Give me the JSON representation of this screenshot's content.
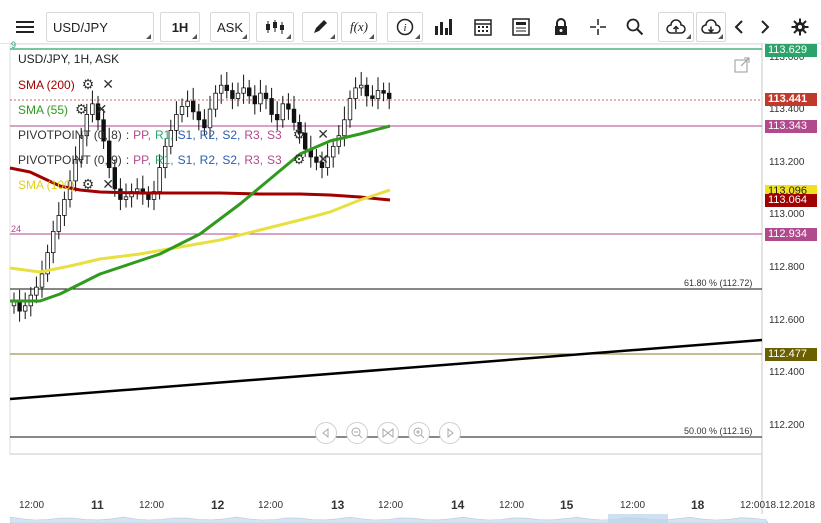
{
  "toolbar": {
    "menu_icon": "hamburger-menu-icon",
    "symbol": "USD/JPY",
    "timeframe": "1H",
    "price_type": "ASK",
    "function_label": "f(x)"
  },
  "legend": {
    "title": "USD/JPY, 1H, ASK",
    "sma200": "SMA (200)",
    "sma55": "SMA (55)",
    "sma100": "SMA (100)",
    "pivot1_name": "PIVOTPOINT (0, 8)",
    "pivot2_name": "PIVOTPOINT (0, 9)",
    "pivot_colon": ":",
    "pivot_levels": [
      "PP,",
      "R1,",
      "S1,",
      "R2,",
      "S2,",
      "R3,",
      "S3"
    ]
  },
  "price_tags": {
    "top": "113.629",
    "current": "113.441",
    "pivot_high": "113.343",
    "sma100": "113.096",
    "sma200": "113.064",
    "pivot_low": "112.934",
    "trend": "112.477"
  },
  "price_axis": [
    "113.600",
    "113.400",
    "113.200",
    "113.000",
    "112.800",
    "112.600",
    "112.400",
    "112.200"
  ],
  "time_axis": {
    "ticks": [
      "12:00",
      "11",
      "12:00",
      "12",
      "12:00",
      "13",
      "12:00",
      "14",
      "12:00",
      "15",
      "12:00",
      "18",
      "12:00",
      "18.12.2018"
    ]
  },
  "left_edge_labels": [
    "9",
    "24"
  ],
  "fibonacci": {
    "level_618": "61.80 % (112.72)",
    "level_50": "50.00 % (112.16)"
  },
  "colors": {
    "sma200": "#a00000",
    "sma55": "#2f9a1d",
    "sma100": "#e8e040",
    "pivot_line": "#b04a8c",
    "current_price": "#c0392b",
    "top_line": "#2ca36b",
    "trend_tag": "#6b6000",
    "candle": "#111111"
  },
  "chart_data": {
    "type": "candlestick",
    "series_name": "USD/JPY, 1H, ASK",
    "close_hourly_approx": [
      112.68,
      112.64,
      112.66,
      112.7,
      112.73,
      112.78,
      112.86,
      112.94,
      113.0,
      113.06,
      113.13,
      113.21,
      113.3,
      113.38,
      113.42,
      113.36,
      113.28,
      113.18,
      113.1,
      113.06,
      113.07,
      113.09,
      113.1,
      113.08,
      113.06,
      113.09,
      113.18,
      113.26,
      113.32,
      113.38,
      113.41,
      113.43,
      113.39,
      113.36,
      113.33,
      113.4,
      113.46,
      113.49,
      113.47,
      113.44,
      113.46,
      113.48,
      113.45,
      113.42,
      113.46,
      113.44,
      113.38,
      113.36,
      113.42,
      113.4,
      113.35,
      113.31,
      113.25,
      113.22,
      113.2,
      113.18,
      113.22,
      113.26,
      113.3,
      113.36,
      113.44,
      113.48,
      113.49,
      113.45,
      113.44,
      113.47,
      113.46,
      113.44
    ],
    "y_range": [
      112.15,
      113.65
    ],
    "x_range": [
      "10 12:00",
      "18.12.2018"
    ]
  }
}
